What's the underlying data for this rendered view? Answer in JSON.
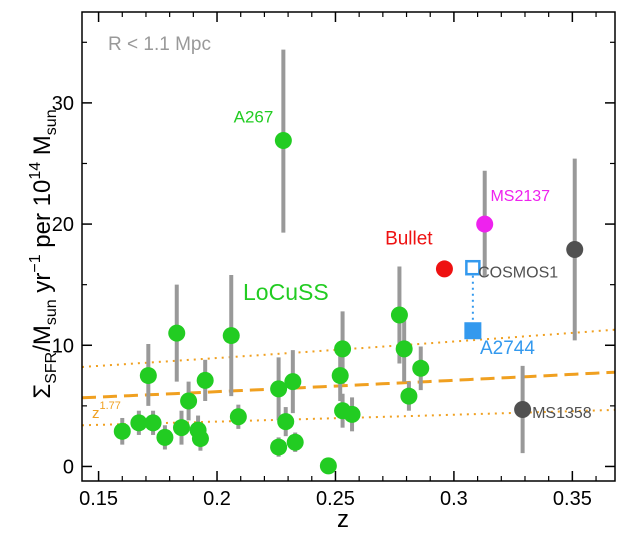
{
  "chart_data": {
    "type": "scatter",
    "xlabel": "z",
    "ylabel": {
      "parts": [
        {
          "t": "Σ"
        },
        {
          "t": "SFR",
          "sub": true
        },
        {
          "t": "/M"
        },
        {
          "t": "sun",
          "sub": true
        },
        {
          "t": " yr"
        },
        {
          "t": "−1",
          "sup": true
        },
        {
          "t": " per 10"
        },
        {
          "t": "14",
          "sup": true
        },
        {
          "t": " M"
        },
        {
          "t": "sun",
          "sub": true
        }
      ]
    },
    "xlim": [
      0.143,
      0.368
    ],
    "ylim": [
      -1.2,
      37.5
    ],
    "xticks": [
      0.15,
      0.2,
      0.25,
      0.3,
      0.35
    ],
    "xtick_labels": [
      "0.15",
      "0.2",
      "0.25",
      "0.3",
      "0.35"
    ],
    "yticks": [
      0,
      10,
      20,
      30
    ],
    "ytick_labels": [
      "0",
      "10",
      "20",
      "30"
    ],
    "minor_xticks": [
      0.16,
      0.17,
      0.18,
      0.19,
      0.21,
      0.22,
      0.23,
      0.24,
      0.26,
      0.27,
      0.28,
      0.29,
      0.31,
      0.32,
      0.33,
      0.34,
      0.36
    ],
    "minor_yticks": [
      5,
      15,
      25,
      35
    ],
    "grid": false,
    "corner_label": "R < 1.1 Mpc",
    "colors": {
      "locuss": "#22cc22",
      "errorbar": "#999999",
      "bullet": "#ee1111",
      "ms2137": "#ee22ee",
      "dark": "#505050",
      "a2744": "#3399ee",
      "fit": "#f0a020",
      "corner": "#999999"
    },
    "fit": {
      "law": "(1+z)^1.77",
      "label_base": "z",
      "label_exp": "1.77",
      "norm_at_ref": 6.4,
      "ref_z": 0.225,
      "exponent": 1.77,
      "scatter_factors": [
        1.45,
        0.6
      ]
    },
    "locuss_label": "LoCuSS",
    "locuss_points": [
      {
        "x": 0.16,
        "y": 2.9,
        "ylo": 1.8,
        "yhi": 4.0
      },
      {
        "x": 0.167,
        "y": 3.6,
        "ylo": 2.6,
        "yhi": 4.6
      },
      {
        "x": 0.171,
        "y": 7.5,
        "ylo": 5.0,
        "yhi": 10.1
      },
      {
        "x": 0.173,
        "y": 3.6,
        "ylo": 2.6,
        "yhi": 4.6
      },
      {
        "x": 0.178,
        "y": 2.4,
        "ylo": 1.4,
        "yhi": 3.4
      },
      {
        "x": 0.183,
        "y": 11.0,
        "ylo": 7.0,
        "yhi": 15.0
      },
      {
        "x": 0.185,
        "y": 3.2,
        "ylo": 1.8,
        "yhi": 4.6
      },
      {
        "x": 0.188,
        "y": 5.4,
        "ylo": 3.8,
        "yhi": 7.0
      },
      {
        "x": 0.192,
        "y": 3.0,
        "ylo": 1.8,
        "yhi": 4.2
      },
      {
        "x": 0.193,
        "y": 2.3,
        "ylo": 1.3,
        "yhi": 3.3
      },
      {
        "x": 0.195,
        "y": 7.1,
        "ylo": 5.4,
        "yhi": 8.8
      },
      {
        "x": 0.206,
        "y": 10.8,
        "ylo": 5.8,
        "yhi": 15.8
      },
      {
        "x": 0.209,
        "y": 4.1,
        "ylo": 3.1,
        "yhi": 5.1
      },
      {
        "x": 0.226,
        "y": 6.4,
        "ylo": 3.8,
        "yhi": 9.0
      },
      {
        "x": 0.226,
        "y": 1.6,
        "ylo": 0.8,
        "yhi": 2.4
      },
      {
        "x": 0.229,
        "y": 3.7,
        "ylo": 2.5,
        "yhi": 4.9
      },
      {
        "x": 0.232,
        "y": 7.0,
        "ylo": 4.4,
        "yhi": 9.6
      },
      {
        "x": 0.233,
        "y": 2.0,
        "ylo": 1.2,
        "yhi": 2.8
      },
      {
        "x": 0.247,
        "y": 0.05,
        "ylo": 0.05,
        "yhi": 0.05
      },
      {
        "x": 0.252,
        "y": 7.5,
        "ylo": 5.4,
        "yhi": 9.6
      },
      {
        "x": 0.253,
        "y": 9.7,
        "ylo": 6.8,
        "yhi": 12.8
      },
      {
        "x": 0.253,
        "y": 4.6,
        "ylo": 3.2,
        "yhi": 6.0
      },
      {
        "x": 0.257,
        "y": 4.3,
        "ylo": 2.9,
        "yhi": 5.7
      },
      {
        "x": 0.277,
        "y": 12.5,
        "ylo": 8.5,
        "yhi": 16.5
      },
      {
        "x": 0.279,
        "y": 9.7,
        "ylo": 7.0,
        "yhi": 12.4
      },
      {
        "x": 0.281,
        "y": 5.8,
        "ylo": 4.6,
        "yhi": 7.0
      },
      {
        "x": 0.286,
        "y": 8.1,
        "ylo": 6.3,
        "yhi": 9.9
      },
      {
        "x": 0.228,
        "y": 26.9,
        "ylo": 19.3,
        "yhi": 34.4,
        "label": "A267"
      }
    ],
    "special_points": [
      {
        "name": "Bullet",
        "x": 0.296,
        "y": 16.3,
        "color_key": "bullet",
        "marker": "circle",
        "label_x": 0.291,
        "label_y": 18.3,
        "anchor": "end"
      },
      {
        "name": "MS2137",
        "x": 0.313,
        "y": 20.0,
        "ylo": 15.7,
        "yhi": 24.4,
        "color_key": "ms2137",
        "marker": "circle",
        "label_x": 0.328,
        "label_y": 21.9,
        "anchor": "middle"
      },
      {
        "name": "COSMOS1",
        "x": 0.351,
        "y": 17.9,
        "ylo": 10.4,
        "yhi": 25.4,
        "color_key": "dark",
        "marker": "circle",
        "label_x": 0.344,
        "label_y": 15.6,
        "anchor": "end"
      },
      {
        "name": "MS1358",
        "x": 0.329,
        "y": 4.7,
        "ylo": 1.1,
        "yhi": 8.3,
        "color_key": "dark",
        "marker": "circle",
        "label_x": 0.333,
        "label_y": 4.0,
        "anchor": "start"
      },
      {
        "name": "A2744",
        "x": 0.308,
        "y": 11.2,
        "color_key": "a2744",
        "marker": "square",
        "label_x": 0.311,
        "label_y": 9.3,
        "anchor": "start"
      }
    ],
    "a2744_open": {
      "x": 0.308,
      "y": 16.4
    }
  }
}
